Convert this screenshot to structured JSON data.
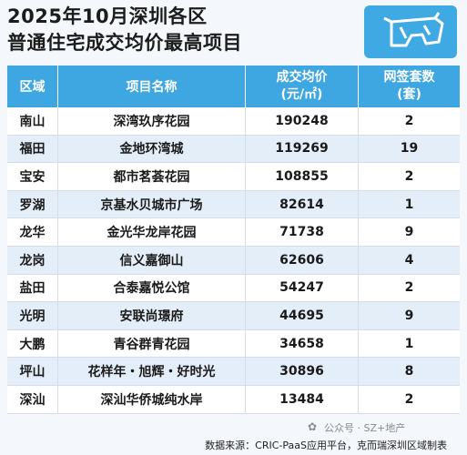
{
  "title_line1": "2025年10月深圳各区",
  "title_line2": "普通住宅成交均价最高项目",
  "headers": {
    "region": "区域",
    "project": "项目名称",
    "price_line1": "成交均价",
    "price_line2": "(元/㎡)",
    "units_line1": "网签套数",
    "units_line2": "(套)"
  },
  "rows": [
    {
      "region": "南山",
      "project": "深湾玖序花园",
      "price": "190248",
      "units": "2"
    },
    {
      "region": "福田",
      "project": "金地环湾城",
      "price": "119269",
      "units": "19"
    },
    {
      "region": "宝安",
      "project": "都市茗荟花园",
      "price": "108855",
      "units": "2"
    },
    {
      "region": "罗湖",
      "project": "京基水贝城市广场",
      "price": "82614",
      "units": "1"
    },
    {
      "region": "龙华",
      "project": "金光华龙岸花园",
      "price": "71738",
      "units": "9"
    },
    {
      "region": "龙岗",
      "project": "信义嘉御山",
      "price": "62606",
      "units": "4"
    },
    {
      "region": "盐田",
      "project": "合泰嘉悦公馆",
      "price": "54247",
      "units": "2"
    },
    {
      "region": "光明",
      "project": "安联尚璟府",
      "price": "44695",
      "units": "9"
    },
    {
      "region": "大鹏",
      "project": "青谷群青花园",
      "price": "34658",
      "units": "1"
    },
    {
      "region": "坪山",
      "project": "花样年・旭辉・好时光",
      "price": "30896",
      "units": "8"
    },
    {
      "region": "深汕",
      "project": "深汕华侨城纯水岸",
      "price": "13484",
      "units": "2"
    }
  ],
  "source": "数据来源：CRIC-PaaS应用平台，克而瑞深圳区域制表",
  "watermark": "公众号 · SZ+地产"
}
